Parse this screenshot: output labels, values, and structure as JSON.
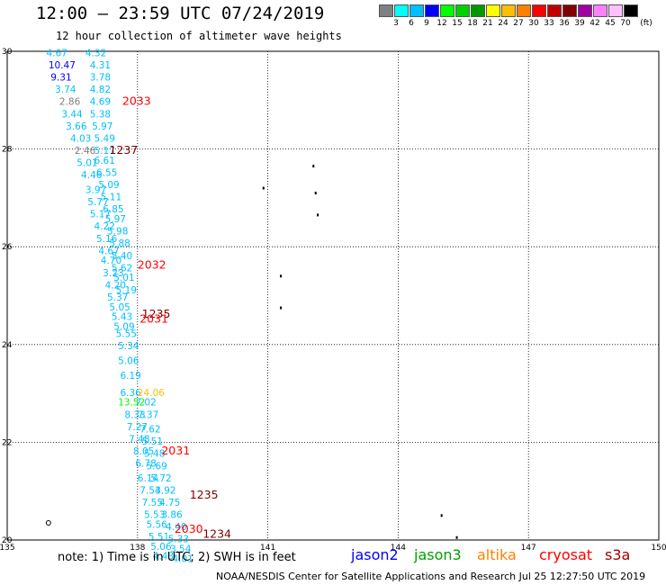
{
  "title": "12:00 — 23:59 UTC 07/24/2019",
  "subtitle": "12 hour collection of altimeter wave heights",
  "colorbar": {
    "colors": [
      "#808080",
      "#00ffff",
      "#00bfff",
      "#0000ff",
      "#00ff00",
      "#00d000",
      "#009a00",
      "#ffff00",
      "#ffbf00",
      "#ff8000",
      "#ff0000",
      "#c00000",
      "#800000",
      "#a000a0",
      "#ff80ff",
      "#ffc0ff",
      "#000000"
    ],
    "labels": [
      "3",
      "6",
      "9",
      "12",
      "15",
      "18",
      "21",
      "24",
      "27",
      "30",
      "33",
      "36",
      "39",
      "42",
      "45",
      "70",
      "(ft)"
    ]
  },
  "chart_data": {
    "type": "scatter",
    "xlim": [
      135,
      150
    ],
    "ylim": [
      20,
      30
    ],
    "xticks": [
      "135",
      "138",
      "141",
      "144",
      "147",
      "150"
    ],
    "yticks": [
      "20",
      "22",
      "24",
      "26",
      "28",
      "30"
    ],
    "grid": "dotted",
    "wave_labels": [
      {
        "lon": 135.9,
        "lat": 29.9,
        "text": "4.67",
        "color": "#00bfff"
      },
      {
        "lon": 136.8,
        "lat": 29.9,
        "text": "4.32",
        "color": "#00bfff"
      },
      {
        "lon": 135.95,
        "lat": 29.65,
        "text": "10.47",
        "color": "#0000ff"
      },
      {
        "lon": 136.9,
        "lat": 29.65,
        "text": "4.31",
        "color": "#00bfff"
      },
      {
        "lon": 136.0,
        "lat": 29.4,
        "text": "9.31",
        "color": "#0000ff"
      },
      {
        "lon": 136.9,
        "lat": 29.4,
        "text": "3.78",
        "color": "#00bfff"
      },
      {
        "lon": 136.1,
        "lat": 29.15,
        "text": "3.74",
        "color": "#00bfff"
      },
      {
        "lon": 136.9,
        "lat": 29.15,
        "text": "4.82",
        "color": "#00bfff"
      },
      {
        "lon": 136.2,
        "lat": 28.9,
        "text": "2.86",
        "color": "#808080"
      },
      {
        "lon": 136.9,
        "lat": 28.9,
        "text": "4.69",
        "color": "#00bfff"
      },
      {
        "lon": 136.25,
        "lat": 28.65,
        "text": "3.44",
        "color": "#00bfff"
      },
      {
        "lon": 136.9,
        "lat": 28.65,
        "text": "5.38",
        "color": "#00bfff"
      },
      {
        "lon": 136.35,
        "lat": 28.4,
        "text": "3.66",
        "color": "#00bfff"
      },
      {
        "lon": 136.95,
        "lat": 28.4,
        "text": "5.97",
        "color": "#00bfff"
      },
      {
        "lon": 136.45,
        "lat": 28.15,
        "text": "4.03",
        "color": "#00bfff"
      },
      {
        "lon": 137.0,
        "lat": 28.15,
        "text": "5.49",
        "color": "#00bfff"
      },
      {
        "lon": 136.55,
        "lat": 27.9,
        "text": "2.46",
        "color": "#808080"
      },
      {
        "lon": 137.0,
        "lat": 27.9,
        "text": "5.17",
        "color": "#00bfff"
      },
      {
        "lon": 137.0,
        "lat": 27.7,
        "text": "6.61",
        "color": "#00bfff"
      },
      {
        "lon": 136.6,
        "lat": 27.65,
        "text": "5.01",
        "color": "#00bfff"
      },
      {
        "lon": 137.05,
        "lat": 27.45,
        "text": "6.55",
        "color": "#00bfff"
      },
      {
        "lon": 136.7,
        "lat": 27.4,
        "text": "4.46",
        "color": "#00bfff"
      },
      {
        "lon": 137.1,
        "lat": 27.2,
        "text": "5.09",
        "color": "#00bfff"
      },
      {
        "lon": 136.8,
        "lat": 27.1,
        "text": "3.97",
        "color": "#00bfff"
      },
      {
        "lon": 137.15,
        "lat": 26.95,
        "text": "5.11",
        "color": "#00bfff"
      },
      {
        "lon": 136.85,
        "lat": 26.85,
        "text": "5.77",
        "color": "#00bfff"
      },
      {
        "lon": 137.2,
        "lat": 26.7,
        "text": "6.85",
        "color": "#00bfff"
      },
      {
        "lon": 136.9,
        "lat": 26.6,
        "text": "5.17",
        "color": "#00bfff"
      },
      {
        "lon": 137.25,
        "lat": 26.5,
        "text": "5.97",
        "color": "#00bfff"
      },
      {
        "lon": 137.0,
        "lat": 26.35,
        "text": "4.22",
        "color": "#00bfff"
      },
      {
        "lon": 137.3,
        "lat": 26.25,
        "text": "5.98",
        "color": "#00bfff"
      },
      {
        "lon": 137.05,
        "lat": 26.1,
        "text": "5.16",
        "color": "#00bfff"
      },
      {
        "lon": 137.35,
        "lat": 26.0,
        "text": "5.88",
        "color": "#00bfff"
      },
      {
        "lon": 137.1,
        "lat": 25.85,
        "text": "4.67",
        "color": "#00bfff"
      },
      {
        "lon": 137.4,
        "lat": 25.75,
        "text": "5.40",
        "color": "#00bfff"
      },
      {
        "lon": 137.15,
        "lat": 25.65,
        "text": "4.70",
        "color": "#00bfff"
      },
      {
        "lon": 137.4,
        "lat": 25.5,
        "text": "5.62",
        "color": "#00bfff"
      },
      {
        "lon": 137.2,
        "lat": 25.4,
        "text": "3.23",
        "color": "#00bfff"
      },
      {
        "lon": 137.45,
        "lat": 25.3,
        "text": "5.01",
        "color": "#00bfff"
      },
      {
        "lon": 137.25,
        "lat": 25.15,
        "text": "4.20",
        "color": "#00bfff"
      },
      {
        "lon": 137.5,
        "lat": 25.05,
        "text": "5.19",
        "color": "#00bfff"
      },
      {
        "lon": 137.3,
        "lat": 24.9,
        "text": "5.37",
        "color": "#00bfff"
      },
      {
        "lon": 137.35,
        "lat": 24.7,
        "text": "5.05",
        "color": "#00bfff"
      },
      {
        "lon": 137.4,
        "lat": 24.5,
        "text": "5.43",
        "color": "#00bfff"
      },
      {
        "lon": 137.45,
        "lat": 24.3,
        "text": "5.09",
        "color": "#00bfff"
      },
      {
        "lon": 137.5,
        "lat": 24.15,
        "text": "5.55",
        "color": "#00bfff"
      },
      {
        "lon": 137.55,
        "lat": 23.9,
        "text": "5.34",
        "color": "#00bfff"
      },
      {
        "lon": 137.55,
        "lat": 23.6,
        "text": "5.06",
        "color": "#00bfff"
      },
      {
        "lon": 137.6,
        "lat": 23.3,
        "text": "6.19",
        "color": "#00bfff"
      },
      {
        "lon": 137.6,
        "lat": 22.95,
        "text": "6.36",
        "color": "#00bfff"
      },
      {
        "lon": 138.0,
        "lat": 22.95,
        "text": "24.06",
        "color": "#ffbf00"
      },
      {
        "lon": 137.55,
        "lat": 22.75,
        "text": "13.52",
        "color": "#00ff00"
      },
      {
        "lon": 137.95,
        "lat": 22.75,
        "text": "7.02",
        "color": "#00bfff"
      },
      {
        "lon": 137.7,
        "lat": 22.5,
        "text": "8.33",
        "color": "#00bfff"
      },
      {
        "lon": 138.0,
        "lat": 22.5,
        "text": "7.37",
        "color": "#00bfff"
      },
      {
        "lon": 137.75,
        "lat": 22.25,
        "text": "7.27",
        "color": "#00bfff"
      },
      {
        "lon": 138.05,
        "lat": 22.2,
        "text": "7.62",
        "color": "#00bfff"
      },
      {
        "lon": 137.8,
        "lat": 22.0,
        "text": "7.48",
        "color": "#00bfff"
      },
      {
        "lon": 138.1,
        "lat": 21.95,
        "text": "5.51",
        "color": "#00bfff"
      },
      {
        "lon": 137.9,
        "lat": 21.75,
        "text": "8.05",
        "color": "#00bfff"
      },
      {
        "lon": 138.15,
        "lat": 21.7,
        "text": "5.48",
        "color": "#00bfff"
      },
      {
        "lon": 137.95,
        "lat": 21.5,
        "text": "6.78",
        "color": "#00bfff"
      },
      {
        "lon": 138.2,
        "lat": 21.45,
        "text": "5.69",
        "color": "#00bfff"
      },
      {
        "lon": 138.0,
        "lat": 21.2,
        "text": "6.14",
        "color": "#00bfff"
      },
      {
        "lon": 138.3,
        "lat": 21.2,
        "text": "5.72",
        "color": "#00bfff"
      },
      {
        "lon": 138.05,
        "lat": 20.95,
        "text": "7.54",
        "color": "#00bfff"
      },
      {
        "lon": 138.4,
        "lat": 20.95,
        "text": "3.92",
        "color": "#00bfff"
      },
      {
        "lon": 138.1,
        "lat": 20.7,
        "text": "7.55",
        "color": "#00bfff"
      },
      {
        "lon": 138.5,
        "lat": 20.7,
        "text": "4.75",
        "color": "#00bfff"
      },
      {
        "lon": 138.15,
        "lat": 20.45,
        "text": "5.53",
        "color": "#00bfff"
      },
      {
        "lon": 138.55,
        "lat": 20.45,
        "text": "3.86",
        "color": "#00bfff"
      },
      {
        "lon": 138.2,
        "lat": 20.25,
        "text": "5.56",
        "color": "#00bfff"
      },
      {
        "lon": 138.65,
        "lat": 20.2,
        "text": "4.40",
        "color": "#00bfff"
      },
      {
        "lon": 138.25,
        "lat": 20.0,
        "text": "5.51",
        "color": "#00bfff"
      },
      {
        "lon": 138.7,
        "lat": 19.95,
        "text": "5.33",
        "color": "#00bfff"
      },
      {
        "lon": 138.3,
        "lat": 19.8,
        "text": "5.06",
        "color": "#00bfff"
      },
      {
        "lon": 138.75,
        "lat": 19.75,
        "text": "3.54",
        "color": "#00bfff"
      },
      {
        "lon": 138.35,
        "lat": 19.6,
        "text": "4.43",
        "color": "#00bfff"
      },
      {
        "lon": 138.8,
        "lat": 19.55,
        "text": "4.01",
        "color": "#00bfff"
      }
    ],
    "time_labels": [
      {
        "lon": 137.65,
        "lat": 28.9,
        "text": "2033",
        "color": "#ff0000"
      },
      {
        "lon": 137.35,
        "lat": 27.9,
        "text": "1237",
        "color": "#800000"
      },
      {
        "lon": 138.0,
        "lat": 25.55,
        "text": "2032",
        "color": "#ff0000"
      },
      {
        "lon": 138.1,
        "lat": 24.55,
        "text": "1235",
        "color": "#800000"
      },
      {
        "lon": 138.05,
        "lat": 24.45,
        "text": "2031",
        "color": "#ff0000"
      },
      {
        "lon": 138.55,
        "lat": 21.75,
        "text": "2031",
        "color": "#ff0000"
      },
      {
        "lon": 139.2,
        "lat": 20.85,
        "text": "1235",
        "color": "#800000"
      },
      {
        "lon": 138.85,
        "lat": 20.15,
        "text": "2030",
        "color": "#ff0000"
      },
      {
        "lon": 139.5,
        "lat": 20.05,
        "text": "1234",
        "color": "#800000"
      }
    ],
    "land_points": [
      {
        "lon": 140.9,
        "lat": 27.2
      },
      {
        "lon": 142.05,
        "lat": 27.65
      },
      {
        "lon": 142.1,
        "lat": 27.1
      },
      {
        "lon": 142.15,
        "lat": 26.65
      },
      {
        "lon": 141.3,
        "lat": 25.4
      },
      {
        "lon": 141.3,
        "lat": 24.75
      },
      {
        "lon": 145.0,
        "lat": 20.5
      },
      {
        "lon": 145.35,
        "lat": 20.05
      }
    ],
    "markers": [
      {
        "lon": 135.95,
        "lat": 20.35,
        "shape": "circle"
      }
    ]
  },
  "note": "note:  1) Time is in UTC;  2) SWH is in feet",
  "missions": [
    {
      "name": "jason2",
      "color": "#0000ff"
    },
    {
      "name": "jason3",
      "color": "#00a000"
    },
    {
      "name": "altika",
      "color": "#ff8000"
    },
    {
      "name": "cryosat",
      "color": "#ff0000"
    },
    {
      "name": "s3a",
      "color": "#a00000"
    }
  ],
  "footer": "NOAA/NESDIS Center for Satellite Applications and Research    Jul 25 12:27:50 UTC 2019"
}
